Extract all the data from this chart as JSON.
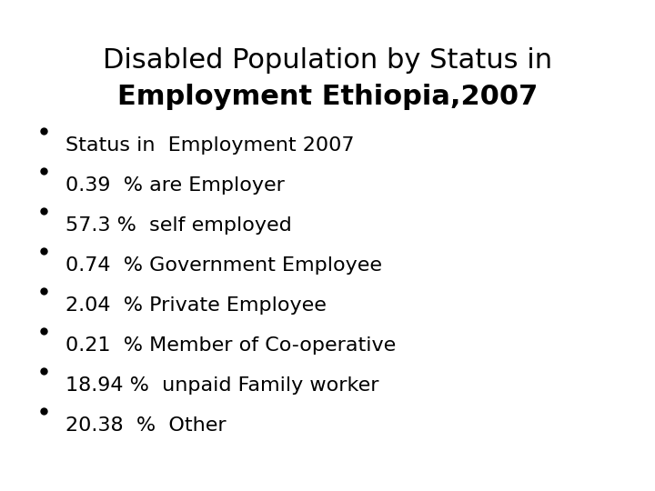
{
  "title_line1": "Disabled Population by Status in",
  "title_line2": "Employment Ethiopia,2007",
  "bullet_items": [
    "Status in  Employment 2007",
    "0.39  % are Employer",
    "57.3 %  self employed",
    "0.74  % Government Employee",
    "2.04  % Private Employee",
    "0.21  % Member of Co-operative",
    "18.94 %  unpaid Family worker",
    "20.38  %  Other"
  ],
  "background_color": "#ffffff",
  "text_color": "#000000",
  "title_fontsize": 22,
  "bullet_fontsize": 16,
  "bullet_dot_size": 5
}
